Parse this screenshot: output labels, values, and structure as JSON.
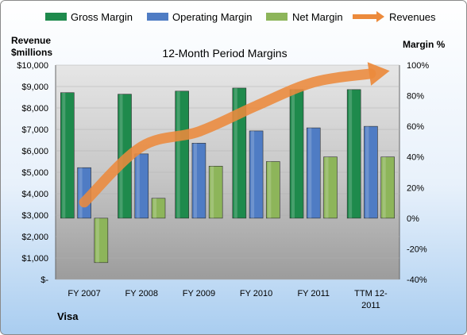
{
  "chart_data": {
    "type": "bar",
    "title": "12-Month Period Margins",
    "company": "Visa",
    "left_axis_label_line1": "Revenue",
    "left_axis_label_line2": "$millions",
    "right_axis_label": "Margin %",
    "categories": [
      "FY 2007",
      "FY 2008",
      "FY 2009",
      "FY 2010",
      "FY 2011",
      "TTM 12-2011"
    ],
    "category_label_lines": [
      [
        "FY 2007"
      ],
      [
        "FY 2008"
      ],
      [
        "FY 2009"
      ],
      [
        "FY 2010"
      ],
      [
        "FY 2011"
      ],
      [
        "TTM 12-",
        "2011"
      ]
    ],
    "left_ticks": [
      "$-",
      "$1,000",
      "$2,000",
      "$3,000",
      "$4,000",
      "$5,000",
      "$6,000",
      "$7,000",
      "$8,000",
      "$9,000",
      "$10,000"
    ],
    "right_ticks": [
      "-40%",
      "-20%",
      "0%",
      "20%",
      "40%",
      "60%",
      "80%",
      "100%"
    ],
    "left_ylim": [
      0,
      10000
    ],
    "right_ylim": [
      -40,
      100
    ],
    "legend_position": "top",
    "series": [
      {
        "name": "Gross Margin",
        "axis": "right",
        "kind": "bar",
        "color": "#1e8a4c",
        "values": [
          82,
          81,
          83,
          85,
          84,
          84
        ]
      },
      {
        "name": "Operating Margin",
        "axis": "right",
        "kind": "bar",
        "color": "#4f7cc4",
        "values": [
          33,
          42,
          49,
          57,
          59,
          60
        ]
      },
      {
        "name": "Net Margin",
        "axis": "right",
        "kind": "bar",
        "color": "#8db55a",
        "values": [
          -29,
          13,
          34,
          37,
          40,
          40
        ]
      },
      {
        "name": "Revenues",
        "axis": "left",
        "kind": "line",
        "color": "#ec8a3c",
        "values": [
          3600,
          6200,
          6900,
          8100,
          9200,
          9600
        ]
      }
    ]
  }
}
